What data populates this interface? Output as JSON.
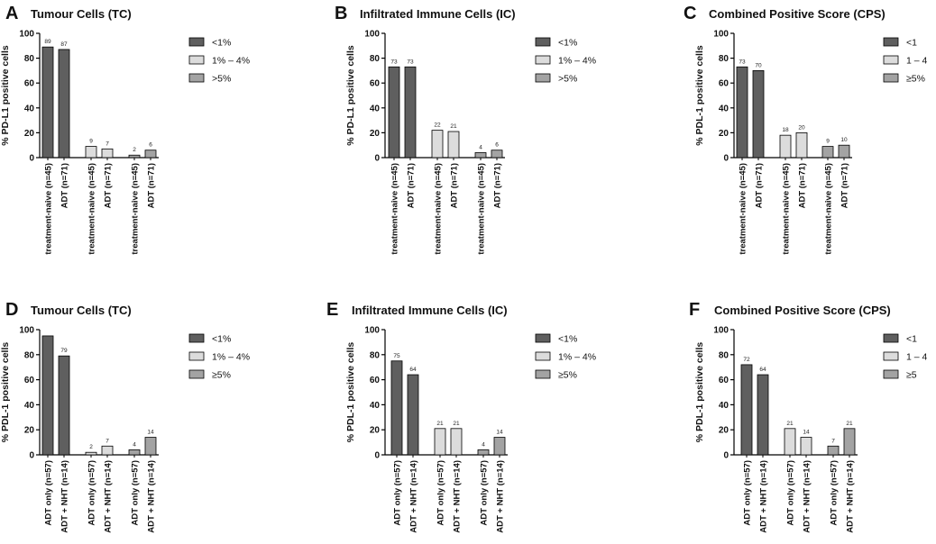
{
  "colors": {
    "dark": "#5f5f5f",
    "light": "#dcdcdc",
    "mid": "#a3a3a3",
    "edge": "#000000"
  },
  "chart_data": [
    {
      "letter": "A",
      "type": "bar",
      "title": "Tumour Cells (TC)",
      "ylabel": "% PD-L1 positive cells",
      "ylim": [
        0,
        100
      ],
      "yticks": [
        0,
        20,
        40,
        60,
        80,
        100
      ],
      "categories": [
        "treatment-naive (n=45)",
        "ADT (n=71)"
      ],
      "series": [
        {
          "name": "<1%",
          "values": [
            89,
            87
          ],
          "labels": [
            "89",
            "87"
          ]
        },
        {
          "name": "1% – 4%",
          "values": [
            9,
            7
          ],
          "labels": [
            "9",
            "7"
          ]
        },
        {
          "name": ">5%",
          "values": [
            2,
            6
          ],
          "labels": [
            "2",
            "6"
          ]
        }
      ]
    },
    {
      "letter": "B",
      "type": "bar",
      "title": "Infiltrated Immune Cells (IC)",
      "ylabel": "% PD-L1 positive cells",
      "ylim": [
        0,
        100
      ],
      "yticks": [
        0,
        20,
        40,
        60,
        80,
        100
      ],
      "categories": [
        "treatment-naive (n=45)",
        "ADT (n=71)"
      ],
      "series": [
        {
          "name": "<1%",
          "values": [
            73,
            73
          ],
          "labels": [
            "73",
            "73"
          ]
        },
        {
          "name": "1% – 4%",
          "values": [
            22,
            21
          ],
          "labels": [
            "22",
            "21"
          ]
        },
        {
          "name": ">5%",
          "values": [
            4,
            6
          ],
          "labels": [
            "4",
            "6"
          ]
        }
      ]
    },
    {
      "letter": "C",
      "type": "bar",
      "title": "Combined Positive Score (CPS)",
      "ylabel": "% PDL-1 positive cells",
      "ylim": [
        0,
        100
      ],
      "yticks": [
        0,
        20,
        40,
        60,
        80,
        100
      ],
      "categories": [
        "treatment-naive (n=45)",
        "ADT (n=71)"
      ],
      "series": [
        {
          "name": "<1",
          "values": [
            73,
            70
          ],
          "labels": [
            "73",
            "70"
          ]
        },
        {
          "name": "1 – 4",
          "values": [
            18,
            20
          ],
          "labels": [
            "18",
            "20"
          ]
        },
        {
          "name": "≥5%",
          "values": [
            9,
            10
          ],
          "labels": [
            "9",
            "10"
          ]
        }
      ]
    },
    {
      "letter": "D",
      "type": "bar",
      "title": "Tumour Cells (TC)",
      "ylabel": "% PDL-1 positive cells",
      "ylim": [
        0,
        100
      ],
      "yticks": [
        0,
        20,
        40,
        60,
        80,
        100
      ],
      "categories": [
        "ADT only (n=57)",
        "ADT + NHT (n=14)"
      ],
      "series": [
        {
          "name": "<1%",
          "values": [
            95,
            79
          ],
          "labels": [
            "",
            "79"
          ]
        },
        {
          "name": "1% – 4%",
          "values": [
            2,
            7
          ],
          "labels": [
            "2",
            "7"
          ]
        },
        {
          "name": "≥5%",
          "values": [
            4,
            14
          ],
          "labels": [
            "4",
            "14"
          ]
        }
      ]
    },
    {
      "letter": "E",
      "type": "bar",
      "title": "Infiltrated Immune Cells (IC)",
      "ylabel": "% PDL-1 positive cells",
      "ylim": [
        0,
        100
      ],
      "yticks": [
        0,
        20,
        40,
        60,
        80,
        100
      ],
      "categories": [
        "ADT only (n=57)",
        "ADT + NHT (n=14)"
      ],
      "series": [
        {
          "name": "<1%",
          "values": [
            75,
            64
          ],
          "labels": [
            "75",
            "64"
          ]
        },
        {
          "name": "1% – 4%",
          "values": [
            21,
            21
          ],
          "labels": [
            "21",
            "21"
          ]
        },
        {
          "name": "≥5%",
          "values": [
            4,
            14
          ],
          "labels": [
            "4",
            "14"
          ]
        }
      ]
    },
    {
      "letter": "F",
      "type": "bar",
      "title": "Combined Positive Score (CPS)",
      "ylabel": "% PDL-1 positive cells",
      "ylim": [
        0,
        100
      ],
      "yticks": [
        0,
        20,
        40,
        60,
        80,
        100
      ],
      "categories": [
        "ADT only (n=57)",
        "ADT + NHT (n=14)"
      ],
      "series": [
        {
          "name": "<1",
          "values": [
            72,
            64
          ],
          "labels": [
            "72",
            "64"
          ]
        },
        {
          "name": "1 – 4",
          "values": [
            21,
            14
          ],
          "labels": [
            "21",
            "14"
          ]
        },
        {
          "name": "≥5",
          "values": [
            7,
            21
          ],
          "labels": [
            "7",
            "21"
          ]
        }
      ]
    }
  ]
}
